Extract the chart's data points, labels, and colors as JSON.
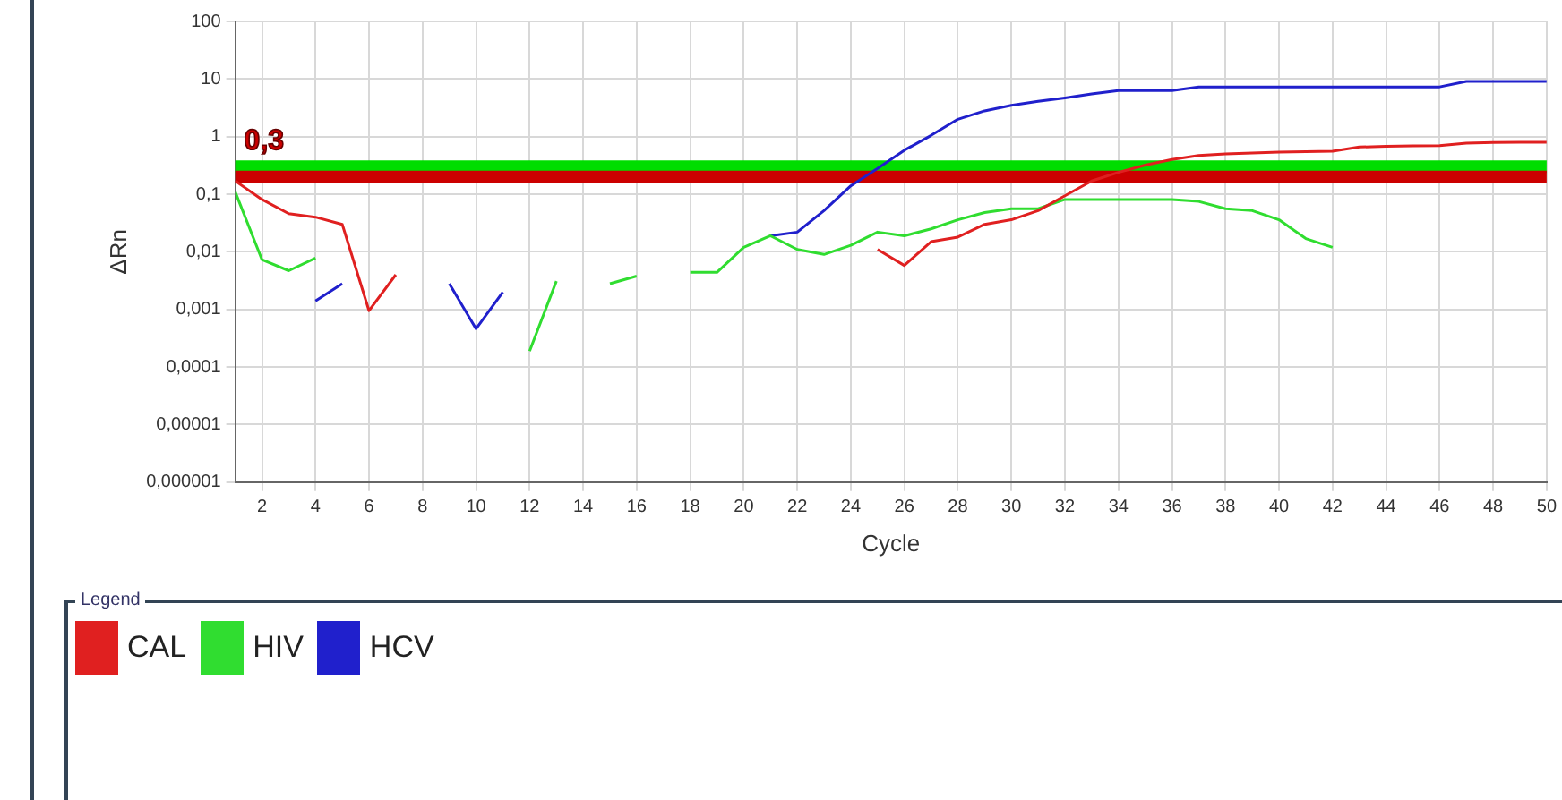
{
  "chart_data": {
    "type": "line",
    "xlabel": "Cycle",
    "ylabel": "ΔRn",
    "legend_title": "Legend",
    "legend": "bottom",
    "grid": true,
    "log": "y",
    "marker": "none",
    "line_style": "solid",
    "x": [
      1,
      2,
      3,
      4,
      5,
      6,
      7,
      8,
      9,
      10,
      11,
      12,
      13,
      14,
      15,
      16,
      17,
      18,
      19,
      20,
      21,
      22,
      23,
      24,
      25,
      26,
      27,
      28,
      29,
      30,
      31,
      32,
      33,
      34,
      35,
      36,
      37,
      38,
      39,
      40,
      41,
      42,
      43,
      44,
      45,
      46,
      47,
      48,
      49,
      50
    ],
    "xlim": [
      1,
      50
    ],
    "xticks": [
      2,
      4,
      6,
      8,
      10,
      12,
      14,
      16,
      18,
      20,
      22,
      24,
      26,
      28,
      30,
      32,
      34,
      36,
      38,
      40,
      42,
      44,
      46,
      48,
      50
    ],
    "ylim": [
      1e-06,
      100
    ],
    "yticks": [
      {
        "value": 1e-06,
        "label": "0,000001"
      },
      {
        "value": 1e-05,
        "label": "0,00001"
      },
      {
        "value": 0.0001,
        "label": "0,0001"
      },
      {
        "value": 0.001,
        "label": "0,001"
      },
      {
        "value": 0.01,
        "label": "0,01"
      },
      {
        "value": 0.1,
        "label": "0,1"
      },
      1,
      10,
      100
    ],
    "series": [
      {
        "name": "CAL",
        "color": "#e02020",
        "values": [
          0.17,
          0.081,
          0.046,
          0.04,
          0.03,
          0.00095,
          0.004,
          null,
          null,
          null,
          null,
          null,
          null,
          null,
          null,
          null,
          null,
          null,
          null,
          null,
          null,
          null,
          null,
          null,
          0.011,
          0.0058,
          0.015,
          0.018,
          0.03,
          0.036,
          0.052,
          0.094,
          0.17,
          0.24,
          0.32,
          0.4,
          0.47,
          0.5,
          0.52,
          0.54,
          0.55,
          0.56,
          0.66,
          0.68,
          0.69,
          0.7,
          0.77,
          0.79,
          0.8,
          0.8
        ]
      },
      {
        "name": "HIV",
        "color": "#30dd30",
        "values": [
          0.11,
          0.0073,
          0.0047,
          0.0078,
          null,
          null,
          null,
          null,
          null,
          null,
          null,
          0.00019,
          0.0031,
          null,
          0.0028,
          0.0038,
          null,
          0.0044,
          0.0044,
          0.012,
          0.019,
          0.011,
          0.009,
          0.013,
          0.022,
          0.019,
          0.025,
          0.036,
          0.048,
          0.056,
          0.056,
          0.081,
          0.081,
          0.081,
          0.081,
          0.081,
          0.075,
          0.056,
          0.052,
          0.036,
          0.017,
          0.012,
          null,
          null,
          null,
          null,
          null,
          null,
          null,
          null
        ]
      },
      {
        "name": "HCV",
        "color": "#2020cc",
        "values": [
          null,
          null,
          null,
          0.0014,
          0.0028,
          null,
          null,
          null,
          0.0028,
          0.00046,
          0.002,
          null,
          null,
          null,
          null,
          null,
          null,
          null,
          null,
          null,
          0.019,
          0.022,
          0.052,
          0.14,
          0.28,
          0.58,
          1.05,
          2,
          2.8,
          3.5,
          4.1,
          4.7,
          5.5,
          6.3,
          6.3,
          6.3,
          7.3,
          7.3,
          7.3,
          7.3,
          7.3,
          7.3,
          7.3,
          7.3,
          7.3,
          7.3,
          9.1,
          9.1,
          9.1,
          9.1
        ]
      }
    ],
    "ref_lines": [
      {
        "axis": "y",
        "value": 0.3,
        "color": "#00dd00"
      },
      {
        "axis": "y",
        "value": 0.2,
        "color": "#cc0000"
      }
    ],
    "annotations": [
      {
        "text": "0,3",
        "x": 1,
        "y": 0.3
      }
    ]
  }
}
